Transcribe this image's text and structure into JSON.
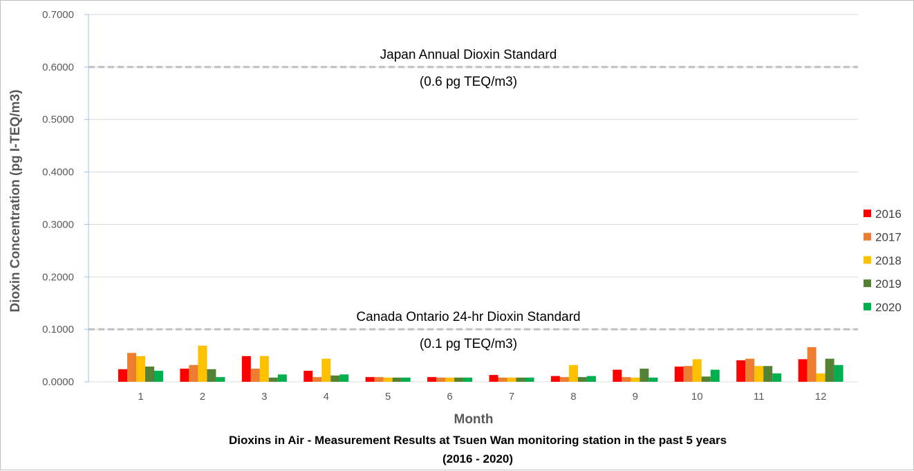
{
  "chart_data": {
    "type": "bar",
    "title": "Dioxins in Air - Measurement Results at Tsuen Wan monitoring station in the past 5 years",
    "subtitle": "(2016 - 2020)",
    "xlabel": "Month",
    "ylabel": "Dioxin Concentration (pg I-TEQ/m3)",
    "ylim": [
      0,
      0.7
    ],
    "yticks": [
      "0.0000",
      "0.1000",
      "0.2000",
      "0.3000",
      "0.4000",
      "0.5000",
      "0.6000",
      "0.7000"
    ],
    "ytick_values": [
      0,
      0.1,
      0.2,
      0.3,
      0.4,
      0.5,
      0.6,
      0.7
    ],
    "grid": true,
    "legend_position": "right",
    "categories": [
      "1",
      "2",
      "3",
      "4",
      "5",
      "6",
      "7",
      "8",
      "9",
      "10",
      "11",
      "12"
    ],
    "series": [
      {
        "name": "2016",
        "color": "#ff0000",
        "values": [
          0.024,
          0.025,
          0.049,
          0.021,
          0.009,
          0.009,
          0.013,
          0.011,
          0.023,
          0.029,
          0.041,
          0.043
        ]
      },
      {
        "name": "2017",
        "color": "#ed7d31",
        "values": [
          0.055,
          0.032,
          0.025,
          0.009,
          0.009,
          0.008,
          0.008,
          0.009,
          0.009,
          0.03,
          0.044,
          0.066
        ]
      },
      {
        "name": "2018",
        "color": "#ffc000",
        "values": [
          0.049,
          0.069,
          0.049,
          0.044,
          0.008,
          0.008,
          0.008,
          0.032,
          0.008,
          0.043,
          0.03,
          0.016
        ]
      },
      {
        "name": "2019",
        "color": "#548235",
        "values": [
          0.029,
          0.024,
          0.008,
          0.012,
          0.008,
          0.008,
          0.008,
          0.009,
          0.025,
          0.01,
          0.03,
          0.044
        ]
      },
      {
        "name": "2020",
        "color": "#00b050",
        "values": [
          0.021,
          0.009,
          0.014,
          0.014,
          0.008,
          0.008,
          0.008,
          0.011,
          0.008,
          0.023,
          0.016,
          0.032
        ]
      }
    ],
    "reference_lines": [
      {
        "value": 0.6,
        "label": "Japan Annual Dioxin Standard",
        "sublabel": "(0.6 pg TEQ/m3)",
        "color": "#bfbfbf"
      },
      {
        "value": 0.1,
        "label": "Canada Ontario 24-hr Dioxin Standard",
        "sublabel": "(0.1 pg TEQ/m3)",
        "color": "#bfbfbf"
      }
    ]
  }
}
